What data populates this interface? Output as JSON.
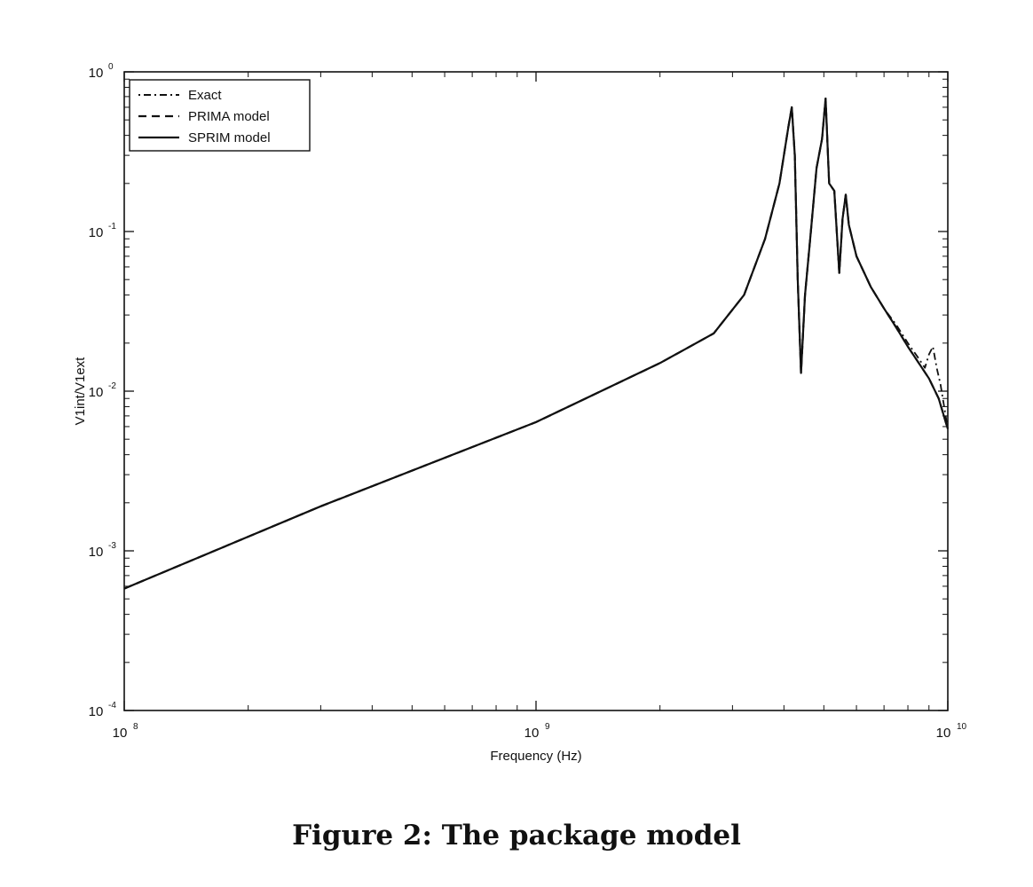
{
  "caption": "Figure 2: The package model",
  "chart_data": {
    "type": "line",
    "title": "",
    "xlabel": "Frequency (Hz)",
    "ylabel": "V1int/V1ext",
    "xscale": "log",
    "yscale": "log",
    "xlim": [
      100000000,
      10000000000
    ],
    "ylim": [
      0.0001,
      1
    ],
    "x_ticks": [
      {
        "value": 100000000,
        "base": "10",
        "exp": "8"
      },
      {
        "value": 1000000000,
        "base": "10",
        "exp": "9"
      },
      {
        "value": 10000000000,
        "base": "10",
        "exp": "10"
      }
    ],
    "y_ticks": [
      {
        "value": 0.0001,
        "base": "10",
        "exp": "-4"
      },
      {
        "value": 0.001,
        "base": "10",
        "exp": "-3"
      },
      {
        "value": 0.01,
        "base": "10",
        "exp": "-2"
      },
      {
        "value": 0.1,
        "base": "10",
        "exp": "-1"
      },
      {
        "value": 1,
        "base": "10",
        "exp": "0"
      }
    ],
    "grid": false,
    "legend_position": "top-left",
    "series": [
      {
        "name": "Exact",
        "style": "dash-dot",
        "color": "#111111",
        "x": [
          100000000,
          300000000,
          1000000000,
          2000000000,
          2700000000,
          3200000000,
          3600000000,
          3900000000,
          4100000000,
          4180000000,
          4250000000,
          4320000000,
          4400000000,
          4500000000,
          4650000000,
          4800000000,
          4950000000,
          5050000000,
          5150000000,
          5300000000,
          5450000000,
          5550000000,
          5650000000,
          5750000000,
          6000000000,
          6500000000,
          7000000000,
          7500000000,
          8000000000,
          8500000000,
          8800000000,
          9000000000,
          9200000000,
          9400000000,
          9600000000,
          9800000000,
          10000000000
        ],
        "y": [
          0.00058,
          0.0019,
          0.0064,
          0.015,
          0.023,
          0.04,
          0.09,
          0.2,
          0.45,
          0.6,
          0.3,
          0.05,
          0.013,
          0.04,
          0.1,
          0.25,
          0.38,
          0.68,
          0.2,
          0.18,
          0.055,
          0.12,
          0.17,
          0.11,
          0.07,
          0.045,
          0.033,
          0.026,
          0.02,
          0.016,
          0.014,
          0.017,
          0.019,
          0.014,
          0.011,
          0.008,
          0.0058
        ]
      },
      {
        "name": "PRIMA model",
        "style": "dashed",
        "color": "#111111",
        "x": [
          100000000,
          300000000,
          1000000000,
          2000000000,
          2700000000,
          3200000000,
          3600000000,
          3900000000,
          4100000000,
          4180000000,
          4250000000,
          4320000000,
          4400000000,
          4500000000,
          4650000000,
          4800000000,
          4950000000,
          5050000000,
          5150000000,
          5300000000,
          5450000000,
          5550000000,
          5650000000,
          5750000000,
          6000000000,
          6500000000,
          7000000000,
          7500000000,
          8000000000,
          8500000000,
          9000000000,
          9500000000,
          10000000000
        ],
        "y": [
          0.00058,
          0.0019,
          0.0064,
          0.015,
          0.023,
          0.04,
          0.09,
          0.2,
          0.45,
          0.6,
          0.3,
          0.05,
          0.013,
          0.04,
          0.1,
          0.25,
          0.38,
          0.68,
          0.2,
          0.18,
          0.055,
          0.12,
          0.17,
          0.11,
          0.07,
          0.045,
          0.033,
          0.025,
          0.019,
          0.015,
          0.012,
          0.009,
          0.0058
        ]
      },
      {
        "name": "SPRIM model",
        "style": "solid",
        "color": "#111111",
        "x": [
          100000000,
          300000000,
          1000000000,
          2000000000,
          2700000000,
          3200000000,
          3600000000,
          3900000000,
          4100000000,
          4180000000,
          4250000000,
          4320000000,
          4400000000,
          4500000000,
          4650000000,
          4800000000,
          4950000000,
          5050000000,
          5150000000,
          5300000000,
          5450000000,
          5550000000,
          5650000000,
          5750000000,
          6000000000,
          6500000000,
          7000000000,
          7500000000,
          8000000000,
          8500000000,
          9000000000,
          9500000000,
          10000000000
        ],
        "y": [
          0.00058,
          0.0019,
          0.0064,
          0.015,
          0.023,
          0.04,
          0.09,
          0.2,
          0.45,
          0.6,
          0.3,
          0.05,
          0.013,
          0.04,
          0.1,
          0.25,
          0.38,
          0.68,
          0.2,
          0.18,
          0.055,
          0.12,
          0.17,
          0.11,
          0.07,
          0.045,
          0.033,
          0.025,
          0.019,
          0.015,
          0.012,
          0.009,
          0.0058
        ]
      }
    ]
  }
}
